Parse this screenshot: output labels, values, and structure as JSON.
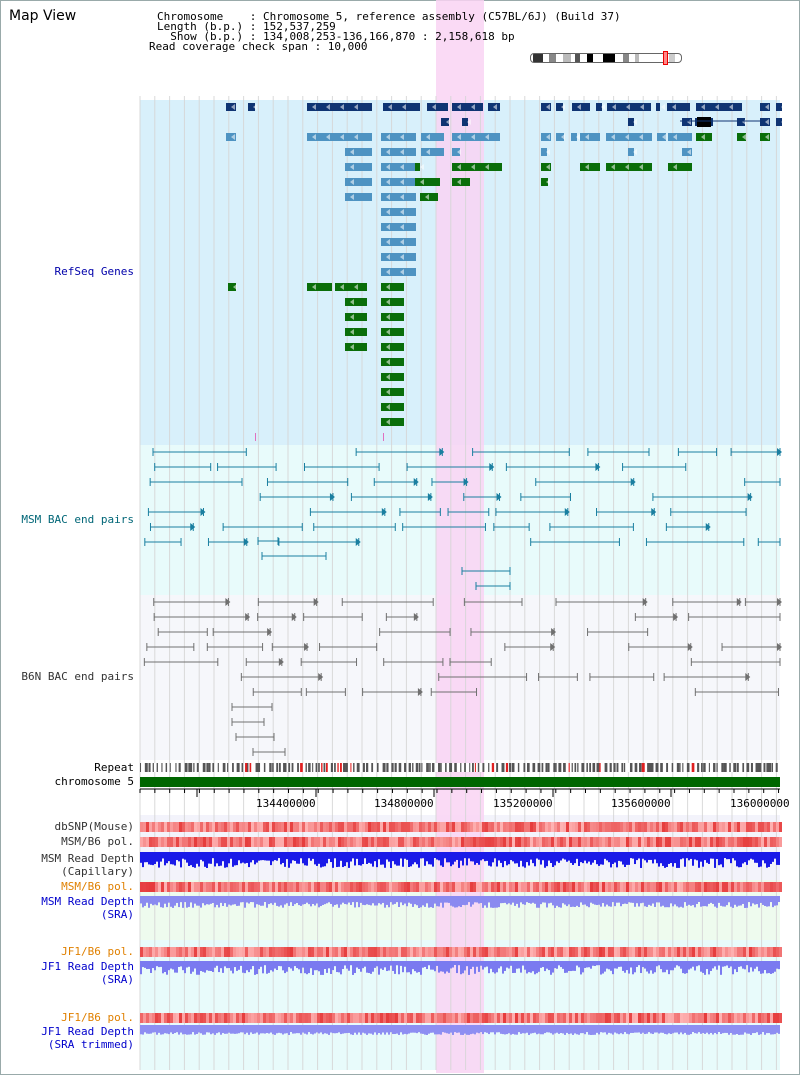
{
  "header": {
    "title": "Map View",
    "info_lines": [
      "Chromosome    : Chromosome 5, reference assembly (C57BL/6J) (Build 37)",
      "Length (b.p.) : 152,537,259",
      "  Show (b.p.) : 134,008,253-136,166,870 : 2,158,618 bp",
      "Read coverage check span : 10,000"
    ]
  },
  "tracks": {
    "refseq": "RefSeq Genes",
    "msm_bac": "MSM BAC end pairs",
    "b6n_bac": "B6N BAC end pairs",
    "repeat": "Repeat",
    "chromosome": "chromosome 5",
    "dbsnp": "dbSNP(Mouse)",
    "msm_b6_pol": "MSM/B6 pol.",
    "msm_depth_cap_1": "MSM Read Depth",
    "msm_depth_cap_2": "(Capillary)",
    "msm_b6_pol_2": "MSM/B6 pol.",
    "msm_depth_sra_1": "MSM Read Depth",
    "msm_depth_sra_2": "(SRA)",
    "jf1_b6_pol": "JF1/B6 pol.",
    "jf1_depth_sra_1": "JF1 Read Depth",
    "jf1_depth_sra_2": "(SRA)",
    "jf1_b6_pol_2": "JF1/B6 pol.",
    "jf1_depth_trim_1": "JF1 Read Depth",
    "jf1_depth_trim_2": "(SRA trimmed)"
  },
  "axis": {
    "ticks": [
      "134400000",
      "134800000",
      "135200000",
      "135600000",
      "136000000"
    ]
  },
  "colors": {
    "highlight": "#f9d3f3",
    "refseq_bg": "#d8f0fb",
    "dark_gene": "#0f3473",
    "mid_gene": "#4e93c2",
    "green_gene": "#0a6e0a",
    "chromosome": "#006600"
  }
}
